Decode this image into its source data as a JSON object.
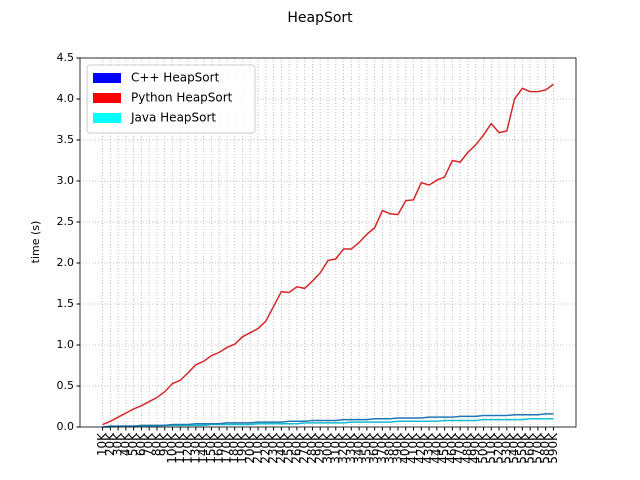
{
  "chart_data": {
    "type": "line",
    "title": "HeapSort",
    "y_label": "time (s)",
    "categories": [
      "10K",
      "20K",
      "30K",
      "40K",
      "50K",
      "60K",
      "70K",
      "80K",
      "90K",
      "100K",
      "110K",
      "120K",
      "130K",
      "140K",
      "150K",
      "160K",
      "170K",
      "180K",
      "190K",
      "200K",
      "210K",
      "220K",
      "230K",
      "240K",
      "250K",
      "260K",
      "270K",
      "280K",
      "290K",
      "300K",
      "310K",
      "320K",
      "330K",
      "340K",
      "350K",
      "360K",
      "370K",
      "380K",
      "390K",
      "400K",
      "410K",
      "420K",
      "430K",
      "440K",
      "450K",
      "460K",
      "470K",
      "480K",
      "490K",
      "500K",
      "510K",
      "520K",
      "530K",
      "540K",
      "550K",
      "560K",
      "570K",
      "580K",
      "590K"
    ],
    "series": [
      {
        "name": "C++ HeapSort",
        "color": "#17becf",
        "legend_color": "#0000ff",
        "values": [
          0.0,
          0.0,
          0.01,
          0.01,
          0.01,
          0.01,
          0.01,
          0.01,
          0.02,
          0.02,
          0.02,
          0.02,
          0.02,
          0.02,
          0.03,
          0.03,
          0.03,
          0.03,
          0.03,
          0.03,
          0.04,
          0.04,
          0.04,
          0.04,
          0.04,
          0.04,
          0.05,
          0.05,
          0.05,
          0.05,
          0.05,
          0.05,
          0.06,
          0.06,
          0.06,
          0.06,
          0.06,
          0.06,
          0.07,
          0.07,
          0.07,
          0.07,
          0.07,
          0.07,
          0.08,
          0.08,
          0.08,
          0.08,
          0.08,
          0.09,
          0.09,
          0.09,
          0.09,
          0.09,
          0.09,
          0.1,
          0.1,
          0.1,
          0.1
        ]
      },
      {
        "name": "Python HeapSort",
        "color": "#d62728",
        "legend_color": "#ff0000",
        "values": [
          0.03,
          0.07,
          0.12,
          0.17,
          0.22,
          0.26,
          0.31,
          0.36,
          0.43,
          0.53,
          0.57,
          0.66,
          0.76,
          0.8,
          0.87,
          0.91,
          0.97,
          1.01,
          1.1,
          1.15,
          1.2,
          1.29,
          1.47,
          1.65,
          1.64,
          1.71,
          1.69,
          1.78,
          1.88,
          2.03,
          2.05,
          2.17,
          2.17,
          2.25,
          2.35,
          2.43,
          2.64,
          2.6,
          2.59,
          2.76,
          2.77,
          2.98,
          2.95,
          3.01,
          3.05,
          3.25,
          3.23,
          3.35,
          3.44,
          3.56,
          3.7,
          3.59,
          3.61,
          4.0,
          4.13,
          4.09,
          4.09,
          4.11,
          4.18
        ]
      },
      {
        "name": "Java HeapSort",
        "color": "#1f77b4",
        "legend_color": "#00ffff",
        "values": [
          0.0,
          0.01,
          0.01,
          0.01,
          0.01,
          0.02,
          0.02,
          0.02,
          0.02,
          0.03,
          0.03,
          0.03,
          0.04,
          0.04,
          0.04,
          0.04,
          0.05,
          0.05,
          0.05,
          0.05,
          0.06,
          0.06,
          0.06,
          0.06,
          0.07,
          0.07,
          0.07,
          0.08,
          0.08,
          0.08,
          0.08,
          0.09,
          0.09,
          0.09,
          0.09,
          0.1,
          0.1,
          0.1,
          0.11,
          0.11,
          0.11,
          0.11,
          0.12,
          0.12,
          0.12,
          0.12,
          0.13,
          0.13,
          0.13,
          0.14,
          0.14,
          0.14,
          0.14,
          0.15,
          0.15,
          0.15,
          0.15,
          0.16,
          0.16
        ]
      }
    ],
    "ylim": [
      0,
      4.5
    ],
    "yticks": [
      {
        "value": 0,
        "label": "0.0"
      },
      0.5,
      {
        "value": 1,
        "label": "1.0"
      },
      1.5,
      {
        "value": 2,
        "label": "2.0"
      },
      2.5,
      {
        "value": 3,
        "label": "3.0"
      },
      3.5,
      {
        "value": 4,
        "label": "4.0"
      },
      4.5
    ],
    "grid": true,
    "legend": "upper left"
  }
}
